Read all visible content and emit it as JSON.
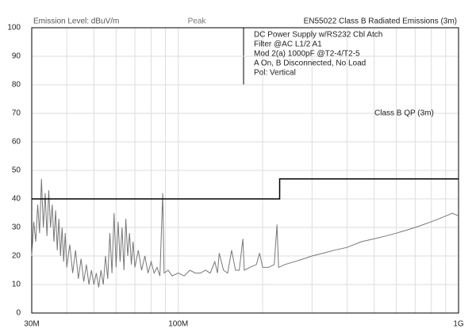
{
  "chart_data": {
    "type": "line",
    "title": "EN55022 Class B Radiated Emissions (3m)",
    "y_label": "Emission Level: dBuV/m",
    "detector": "Peak",
    "notes": [
      "DC Power Supply  w/RS232 Cbl Atch",
      "Filter @AC L1/2 A1",
      "Mod 2(a) 1000pF @T2-4/T2-5",
      "A On, B Disconnected,  No Load",
      "Pol: Vertical"
    ],
    "log_x": true,
    "xlim": [
      30,
      1000
    ],
    "ylim": [
      0,
      100
    ],
    "xticks": [
      {
        "value": 30,
        "label": "30M"
      },
      {
        "value": 100,
        "label": "100M"
      },
      {
        "value": 1000,
        "label": "1G"
      }
    ],
    "xminor": [
      40,
      50,
      60,
      70,
      80,
      90,
      200,
      300,
      400,
      500,
      600,
      700,
      800,
      900
    ],
    "yticks": [
      0,
      10,
      20,
      30,
      40,
      50,
      60,
      70,
      80,
      90,
      100
    ],
    "grid": true,
    "series": [
      {
        "color": "#777777",
        "x": [
          30,
          30.5,
          31,
          31.5,
          32,
          32.5,
          33,
          33.5,
          34,
          34.5,
          35,
          35.5,
          36,
          36.5,
          37,
          37.5,
          38,
          38.5,
          39,
          39.5,
          40,
          41,
          42,
          43,
          44,
          45,
          46,
          47,
          48,
          49,
          50,
          51,
          52,
          53,
          54,
          55,
          56,
          57,
          58,
          59,
          60,
          61,
          62,
          63,
          64,
          65,
          66,
          67,
          68,
          69,
          70,
          72,
          74,
          76,
          78,
          80,
          82,
          84,
          86,
          88,
          89,
          92,
          95,
          100,
          105,
          110,
          115,
          120,
          125,
          130,
          135,
          138,
          140,
          145,
          150,
          155,
          160,
          165,
          170,
          172,
          180,
          190,
          195,
          200,
          210,
          220,
          225,
          228,
          240,
          260,
          280,
          300,
          330,
          360,
          400,
          450,
          500,
          550,
          600,
          650,
          700,
          750,
          800,
          850,
          900,
          950,
          1000
        ],
        "values": [
          20,
          32,
          25,
          38,
          28,
          47,
          30,
          42,
          27,
          43,
          30,
          38,
          25,
          36,
          22,
          33,
          20,
          30,
          18,
          28,
          16,
          24,
          14,
          22,
          12,
          19,
          11,
          17,
          10,
          15,
          10,
          14,
          9,
          15,
          10,
          20,
          12,
          28,
          14,
          35,
          16,
          32,
          18,
          30,
          15,
          33,
          20,
          28,
          17,
          25,
          16,
          22,
          15,
          20,
          14,
          18,
          14,
          16,
          13,
          42,
          14,
          15,
          13,
          14,
          13,
          15,
          14,
          14,
          15,
          14,
          18,
          14,
          21,
          15,
          14,
          22,
          15,
          15,
          26,
          15,
          16,
          17,
          21,
          16,
          16,
          17,
          31,
          16,
          17,
          18,
          19,
          20,
          21,
          22,
          23,
          25,
          26,
          27,
          28,
          29,
          30,
          31,
          32,
          33,
          34,
          35,
          34
        ]
      },
      {
        "name": "Class B QP (3m)",
        "color": "#000000",
        "x": [
          30,
          230,
          230,
          1000
        ],
        "values": [
          40,
          40,
          47,
          47
        ]
      }
    ]
  }
}
